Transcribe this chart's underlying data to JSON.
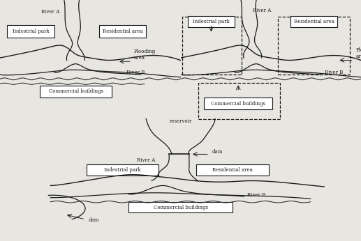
{
  "bg_color": "#e8e6e1",
  "line_color": "#1a1a1a",
  "text_color": "#1a1a1a",
  "label_fontsize": 5.5,
  "small_fontsize": 5.0,
  "diagrams": {
    "top_left": {
      "river_a_label": "River A",
      "river_b_label": "River B",
      "flood_label": "Flooding\narea",
      "industrial_label": "Indestrial park",
      "residential_label": "Residential area",
      "commercial_label": "Commercial buildings"
    },
    "top_right": {
      "river_a_label": "River A",
      "river_b_label": "River B",
      "flood_label": "Flooding\narea",
      "industrial_label": "Indestrial park",
      "residential_label": "Residential area",
      "commercial_label": "Commercial buildings"
    },
    "bottom": {
      "river_a_label": "River A",
      "river_b_label": "River B",
      "reservoir_label": "reservoir",
      "dam_label1": "dam",
      "dam_label2": "dam",
      "industrial_label": "Indestrial park",
      "residential_label": "Residential area",
      "commercial_label": "Commercial buildings"
    }
  }
}
